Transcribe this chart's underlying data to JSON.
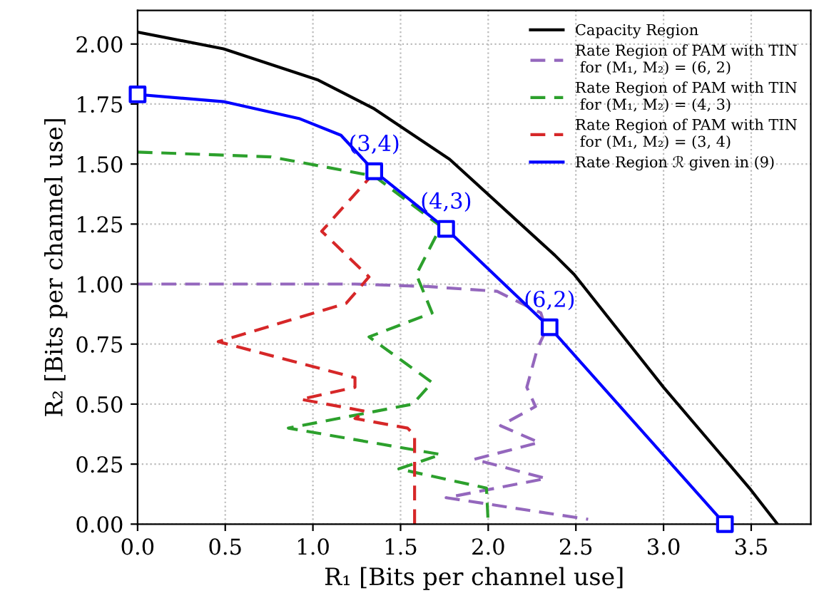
{
  "chart_data": {
    "type": "line",
    "xlabel": "R₁ [Bits per channel use]",
    "ylabel": "R₂ [Bits per channel use]",
    "xlim": [
      0,
      3.84
    ],
    "ylim": [
      0,
      2.14
    ],
    "xticks": [
      {
        "value": 0,
        "label": "0.0"
      },
      {
        "value": 0.5,
        "label": "0.5"
      },
      {
        "value": 1,
        "label": "1.0"
      },
      {
        "value": 1.5,
        "label": "1.5"
      },
      {
        "value": 2,
        "label": "2.0"
      },
      {
        "value": 2.5,
        "label": "2.5"
      },
      {
        "value": 3,
        "label": "3.0"
      },
      {
        "value": 3.5,
        "label": "3.5"
      }
    ],
    "yticks": [
      {
        "value": 0,
        "label": "0.00"
      },
      {
        "value": 0.25,
        "label": "0.25"
      },
      {
        "value": 0.5,
        "label": "0.50"
      },
      {
        "value": 0.75,
        "label": "0.75"
      },
      {
        "value": 1,
        "label": "1.00"
      },
      {
        "value": 1.25,
        "label": "1.25"
      },
      {
        "value": 1.5,
        "label": "1.50"
      },
      {
        "value": 1.75,
        "label": "1.75"
      },
      {
        "value": 2,
        "label": "2.00"
      }
    ],
    "grid": true,
    "legend": "top right",
    "series": [
      {
        "name": "Capacity Region",
        "color": "#000000",
        "line_style": "solid",
        "x": [
          0,
          0.49,
          1.03,
          1.35,
          1.78,
          2.38,
          2.49,
          3.0,
          3.49,
          3.65
        ],
        "values": [
          2.05,
          1.98,
          1.85,
          1.73,
          1.52,
          1.12,
          1.04,
          0.57,
          0.15,
          0
        ]
      },
      {
        "name": "Rate Region of PAM with TIN\n for (M₁, M₂) = (6, 2)",
        "color": "#9467bd",
        "line_style": "dashed",
        "x": [
          0,
          1.24,
          1.65,
          2.05,
          2.3,
          2.33,
          2.28,
          2.22,
          2.27,
          2.07,
          2.29,
          1.92,
          2.33,
          1.76,
          2.57
        ],
        "values": [
          1.0,
          1.0,
          0.99,
          0.97,
          0.88,
          0.81,
          0.73,
          0.57,
          0.49,
          0.41,
          0.34,
          0.27,
          0.19,
          0.11,
          0.02
        ]
      },
      {
        "name": "Rate Region of PAM with TIN\n for (M₁, M₂) = (4, 3)",
        "color": "#2ca02c",
        "line_style": "dashed",
        "x": [
          0,
          0.76,
          1.35,
          1.73,
          1.59,
          1.68,
          1.32,
          1.68,
          1.57,
          0.86,
          1.73,
          1.49,
          1.99,
          2.0
        ],
        "values": [
          1.55,
          1.53,
          1.45,
          1.24,
          1.04,
          0.88,
          0.78,
          0.59,
          0.5,
          0.4,
          0.29,
          0.23,
          0.15,
          0
        ]
      },
      {
        "name": "Rate Region of PAM with TIN\n for (M₁, M₂) = (3, 4)",
        "color": "#d62728",
        "line_style": "dashed",
        "x": [
          1.35,
          1.32,
          1.05,
          1.32,
          1.19,
          0.46,
          1.24,
          1.24,
          0.93,
          1.3,
          1.24,
          1.54,
          1.58,
          1.58
        ],
        "values": [
          1.47,
          1.44,
          1.22,
          1.03,
          0.92,
          0.76,
          0.61,
          0.57,
          0.52,
          0.47,
          0.44,
          0.4,
          0.37,
          0
        ]
      },
      {
        "name": "Rate Region ℛ given in (9)",
        "color": "#0000ff",
        "line_style": "solid",
        "x": [
          0,
          0.49,
          0.92,
          1.16,
          1.35,
          1.76,
          2.35,
          3.35
        ],
        "values": [
          1.79,
          1.76,
          1.69,
          1.62,
          1.47,
          1.23,
          0.82,
          0
        ]
      },
      {
        "type": "scatter",
        "color": "#0000ff",
        "marker": "square",
        "x": [
          0,
          1.35,
          1.76,
          2.35,
          3.35
        ],
        "values": [
          1.79,
          1.47,
          1.23,
          0.82,
          0
        ]
      }
    ],
    "annotations": [
      {
        "text": "(3,4)",
        "x": 1.35,
        "y": 1.47
      },
      {
        "text": "(4,3)",
        "x": 1.76,
        "y": 1.23
      },
      {
        "text": "(6,2)",
        "x": 2.35,
        "y": 0.82
      }
    ]
  }
}
